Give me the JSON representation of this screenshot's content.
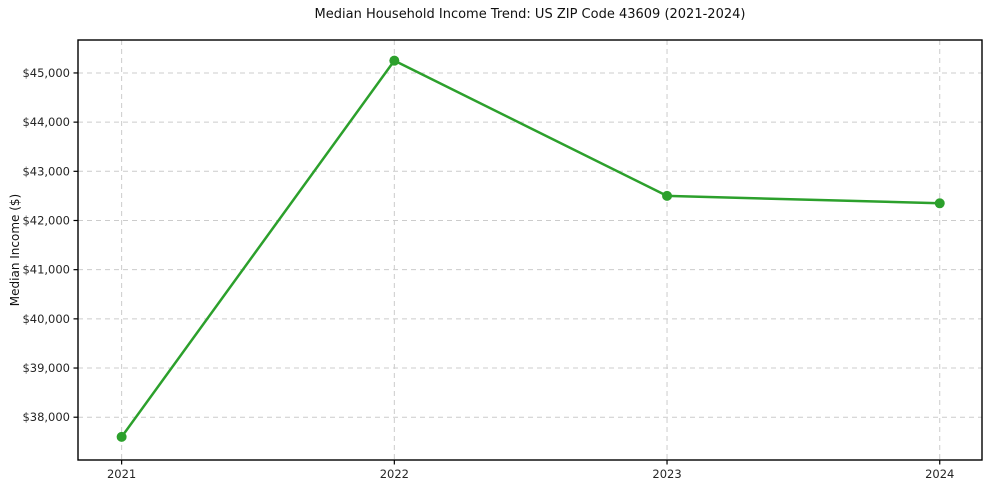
{
  "chart_data": {
    "type": "line",
    "title": "Median Household Income Trend: US ZIP Code 43609 (2021-2024)",
    "xlabel": "",
    "ylabel": "Median Income ($)",
    "x": [
      2021,
      2022,
      2023,
      2024
    ],
    "values": [
      37600,
      45250,
      42500,
      42350
    ],
    "series_name": "Median Household Income",
    "xtick_labels": [
      "2021",
      "2022",
      "2023",
      "2024"
    ],
    "ytick_values": [
      38000,
      39000,
      40000,
      41000,
      42000,
      43000,
      44000,
      45000
    ],
    "ytick_labels": [
      "$38,000",
      "$39,000",
      "$40,000",
      "$41,000",
      "$42,000",
      "$43,000",
      "$44,000",
      "$45,000"
    ],
    "xlim": [
      2020.84,
      2024.155
    ],
    "ylim": [
      37130,
      45670
    ],
    "grid": true,
    "grid_style": "dashed",
    "legend_position": "none",
    "line_color": "#2ca02c",
    "marker": "circle",
    "marker_radius": 5,
    "line_width": 2.5,
    "grid_color": "#cccccc",
    "axis_color": "#000000",
    "tick_text_color": "#262626"
  }
}
